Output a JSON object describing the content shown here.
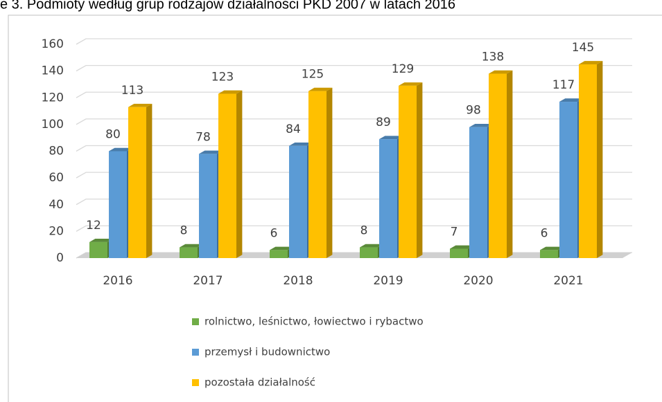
{
  "chart_data": {
    "type": "bar3d",
    "title": "e 3. Podmioty według grup rodzajów działalności PKD 2007 w latach 2016",
    "categories": [
      "2016",
      "2017",
      "2018",
      "2019",
      "2020",
      "2021"
    ],
    "series": [
      {
        "name": "rolnictwo, leśnictwo, łowiectwo i rybactwo",
        "color": "#70ad47",
        "values": [
          12,
          8,
          6,
          8,
          7,
          6
        ]
      },
      {
        "name": "przemysł i budownictwo",
        "color": "#5b9bd5",
        "values": [
          80,
          78,
          84,
          89,
          98,
          117
        ]
      },
      {
        "name": "pozostała działalność",
        "color": "#ffc000",
        "values": [
          113,
          123,
          125,
          129,
          138,
          145
        ]
      }
    ],
    "ylim": [
      0,
      160
    ],
    "yticks": [
      0,
      20,
      40,
      60,
      80,
      100,
      120,
      140,
      160
    ],
    "grid": true,
    "legend": "bottom"
  }
}
